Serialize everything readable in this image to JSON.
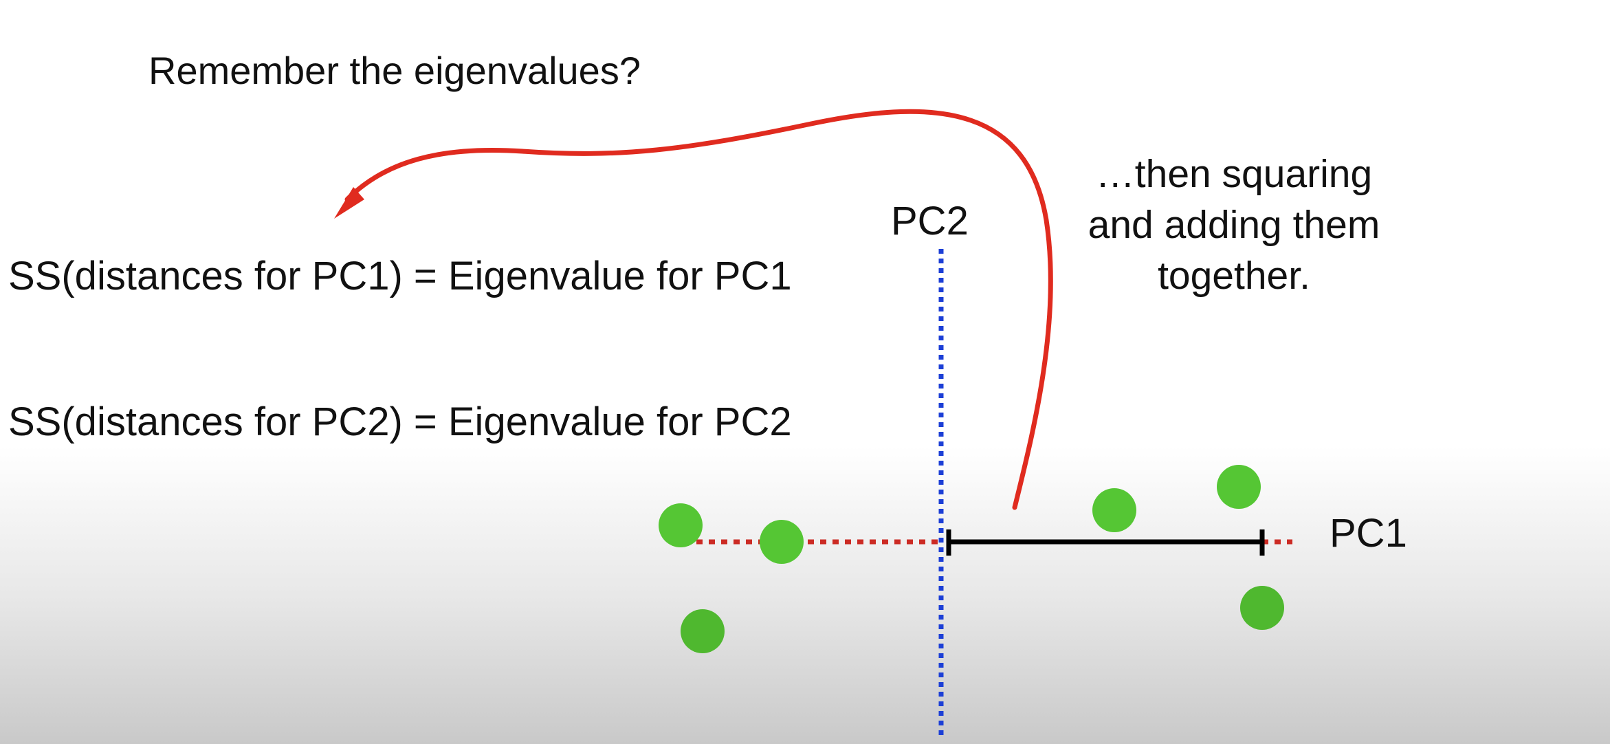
{
  "header": {
    "question": "Remember the eigenvalues?"
  },
  "equations": [
    {
      "text": "SS(distances for PC1) = Eigenvalue for PC1"
    },
    {
      "text": "SS(distances for PC2) = Eigenvalue for PC2"
    }
  ],
  "axes": {
    "pc1_label": "PC1",
    "pc2_label": "PC2"
  },
  "note": {
    "lines": [
      "…then squaring",
      "and adding them",
      "together."
    ]
  },
  "colors": {
    "points": "#55c634",
    "pc1_axis": "#cc2b24",
    "pc2_axis": "#1c3fd6",
    "arrow": "#e02b1f",
    "distance_bar": "#000000"
  },
  "icons": [
    "curved-red-arrow-icon"
  ]
}
